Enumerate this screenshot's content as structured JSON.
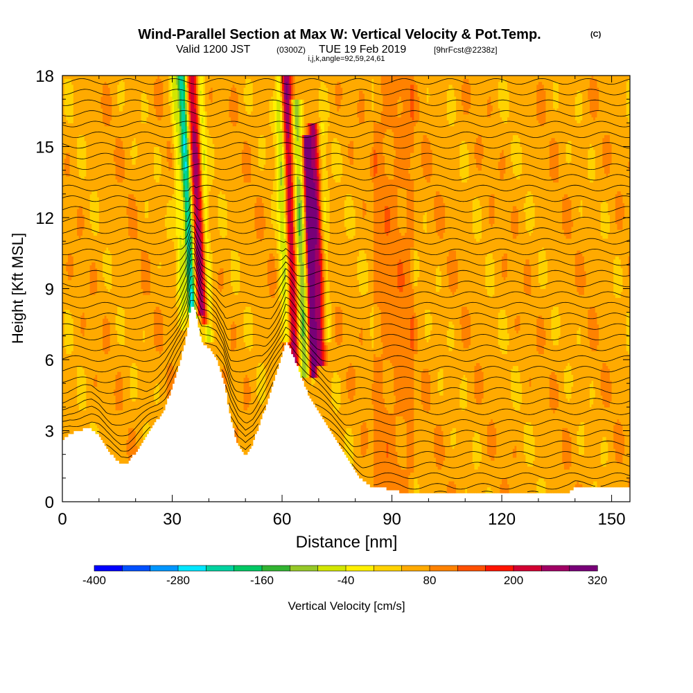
{
  "chart_data": {
    "type": "heatmap",
    "title": "Wind-Parallel Section at Max W: Vertical Velocity & Pot.Temp.",
    "title_mark": "(C)",
    "subtitle_main": "Valid 1200 JST",
    "subtitle_utc": "(0300Z)",
    "subtitle_date": "TUE 19 Feb 2019",
    "subtitle_fcst": "[9hrFcst@2238z]",
    "subtitle_index": "i,j,k,angle=92,59,24,61",
    "xlabel": "Distance [nm]",
    "ylabel": "Height [Kft MSL]",
    "xlim": [
      0,
      155
    ],
    "ylim": [
      0,
      18
    ],
    "x_ticks": [
      0,
      30,
      60,
      90,
      120,
      150
    ],
    "x_tick_labels": [
      "0",
      "30",
      "60",
      "90",
      "120",
      "150"
    ],
    "y_ticks": [
      0,
      3,
      6,
      9,
      12,
      15,
      18
    ],
    "y_tick_labels": [
      "0",
      "3",
      "6",
      "9",
      "12",
      "15",
      "18"
    ],
    "colorbar": {
      "label": "Vertical Velocity [cm/s]",
      "min": -400,
      "max": 320,
      "step": 40,
      "tick_labels": [
        "-400",
        "-280",
        "-160",
        "-40",
        "80",
        "200",
        "320"
      ],
      "tick_values": [
        -400,
        -280,
        -160,
        -40,
        80,
        200,
        320
      ],
      "colors": [
        "#0000ff",
        "#0050ff",
        "#0096ff",
        "#00e6ff",
        "#00d2a0",
        "#00c864",
        "#32b432",
        "#96c828",
        "#d2e600",
        "#fff000",
        "#ffd200",
        "#ffaa00",
        "#ff8200",
        "#ff5000",
        "#ff1400",
        "#d20032",
        "#a00064",
        "#780078"
      ]
    },
    "terrain_profile": {
      "x": [
        0,
        2,
        4,
        6,
        8,
        10,
        12,
        14,
        16,
        18,
        20,
        22,
        24,
        26,
        28,
        30,
        32,
        34,
        35,
        36,
        37,
        38,
        40,
        42,
        44,
        45,
        46,
        48,
        50,
        52,
        54,
        56,
        58,
        60,
        61,
        62,
        63,
        64,
        65,
        66,
        67,
        68,
        70,
        72,
        74,
        76,
        78,
        80,
        82,
        84,
        86,
        88,
        90,
        95,
        100,
        110,
        120,
        130,
        138,
        140,
        145,
        150,
        155
      ],
      "y": [
        2.6,
        2.9,
        3.0,
        3.1,
        3.1,
        2.8,
        2.3,
        1.9,
        1.6,
        1.7,
        2.1,
        2.6,
        3.1,
        3.5,
        4.0,
        4.9,
        5.9,
        7.1,
        8.3,
        8.3,
        7.6,
        6.8,
        6.5,
        6.1,
        5.2,
        4.4,
        3.5,
        2.4,
        1.9,
        2.5,
        3.4,
        4.2,
        5.2,
        6.2,
        6.8,
        6.6,
        6.2,
        5.8,
        5.4,
        5.0,
        4.6,
        4.3,
        3.8,
        3.3,
        2.8,
        2.3,
        1.8,
        1.3,
        0.9,
        0.7,
        0.6,
        0.6,
        0.5,
        0.35,
        0.35,
        0.35,
        0.35,
        0.35,
        0.35,
        0.6,
        0.6,
        0.6,
        0.6
      ]
    },
    "vertical_velocity_features": [
      {
        "x_base": 35.5,
        "z_base": 8.0,
        "z_top": 18,
        "tilt": -0.3,
        "width": 1.2,
        "value": -300
      },
      {
        "x_base": 37.5,
        "z_base": 8.2,
        "z_top": 18,
        "tilt": -0.25,
        "width": 1.0,
        "value": 170
      },
      {
        "x_base": 40.0,
        "z_base": 7.0,
        "z_top": 18,
        "tilt": -0.25,
        "width": 1.2,
        "value": -140
      },
      {
        "x_base": 33.0,
        "z_base": 7.5,
        "z_top": 18,
        "tilt": -0.25,
        "width": 1.0,
        "value": -100
      },
      {
        "x_base": 39.0,
        "z_base": 7.8,
        "z_top": 18,
        "tilt": -0.25,
        "width": 1.0,
        "value": 180
      },
      {
        "x_base": 63.5,
        "z_base": 6.0,
        "z_top": 18,
        "tilt": -0.2,
        "width": 1.5,
        "value": 200
      },
      {
        "x_base": 66.0,
        "z_base": 5.5,
        "z_top": 17,
        "tilt": -0.2,
        "width": 1.5,
        "value": -180
      },
      {
        "x_base": 68.5,
        "z_base": 5.5,
        "z_top": 15.5,
        "tilt": -0.18,
        "width": 1.0,
        "value": 320
      },
      {
        "x_base": 70.5,
        "z_base": 6.0,
        "z_top": 16,
        "tilt": -0.2,
        "width": 1.5,
        "value": 200
      },
      {
        "x_base": 60.5,
        "z_base": 7.0,
        "z_top": 17,
        "tilt": -0.2,
        "width": 1.2,
        "value": -60
      },
      {
        "x_base": 72.5,
        "z_base": 7.0,
        "z_top": 16,
        "tilt": -0.2,
        "width": 1.2,
        "value": -70
      },
      {
        "x_base": 61.5,
        "z_base": 7.0,
        "z_top": 18,
        "tilt": -0.2,
        "width": 1.0,
        "value": -120
      }
    ],
    "grid": false,
    "legend_position": "bottom"
  }
}
